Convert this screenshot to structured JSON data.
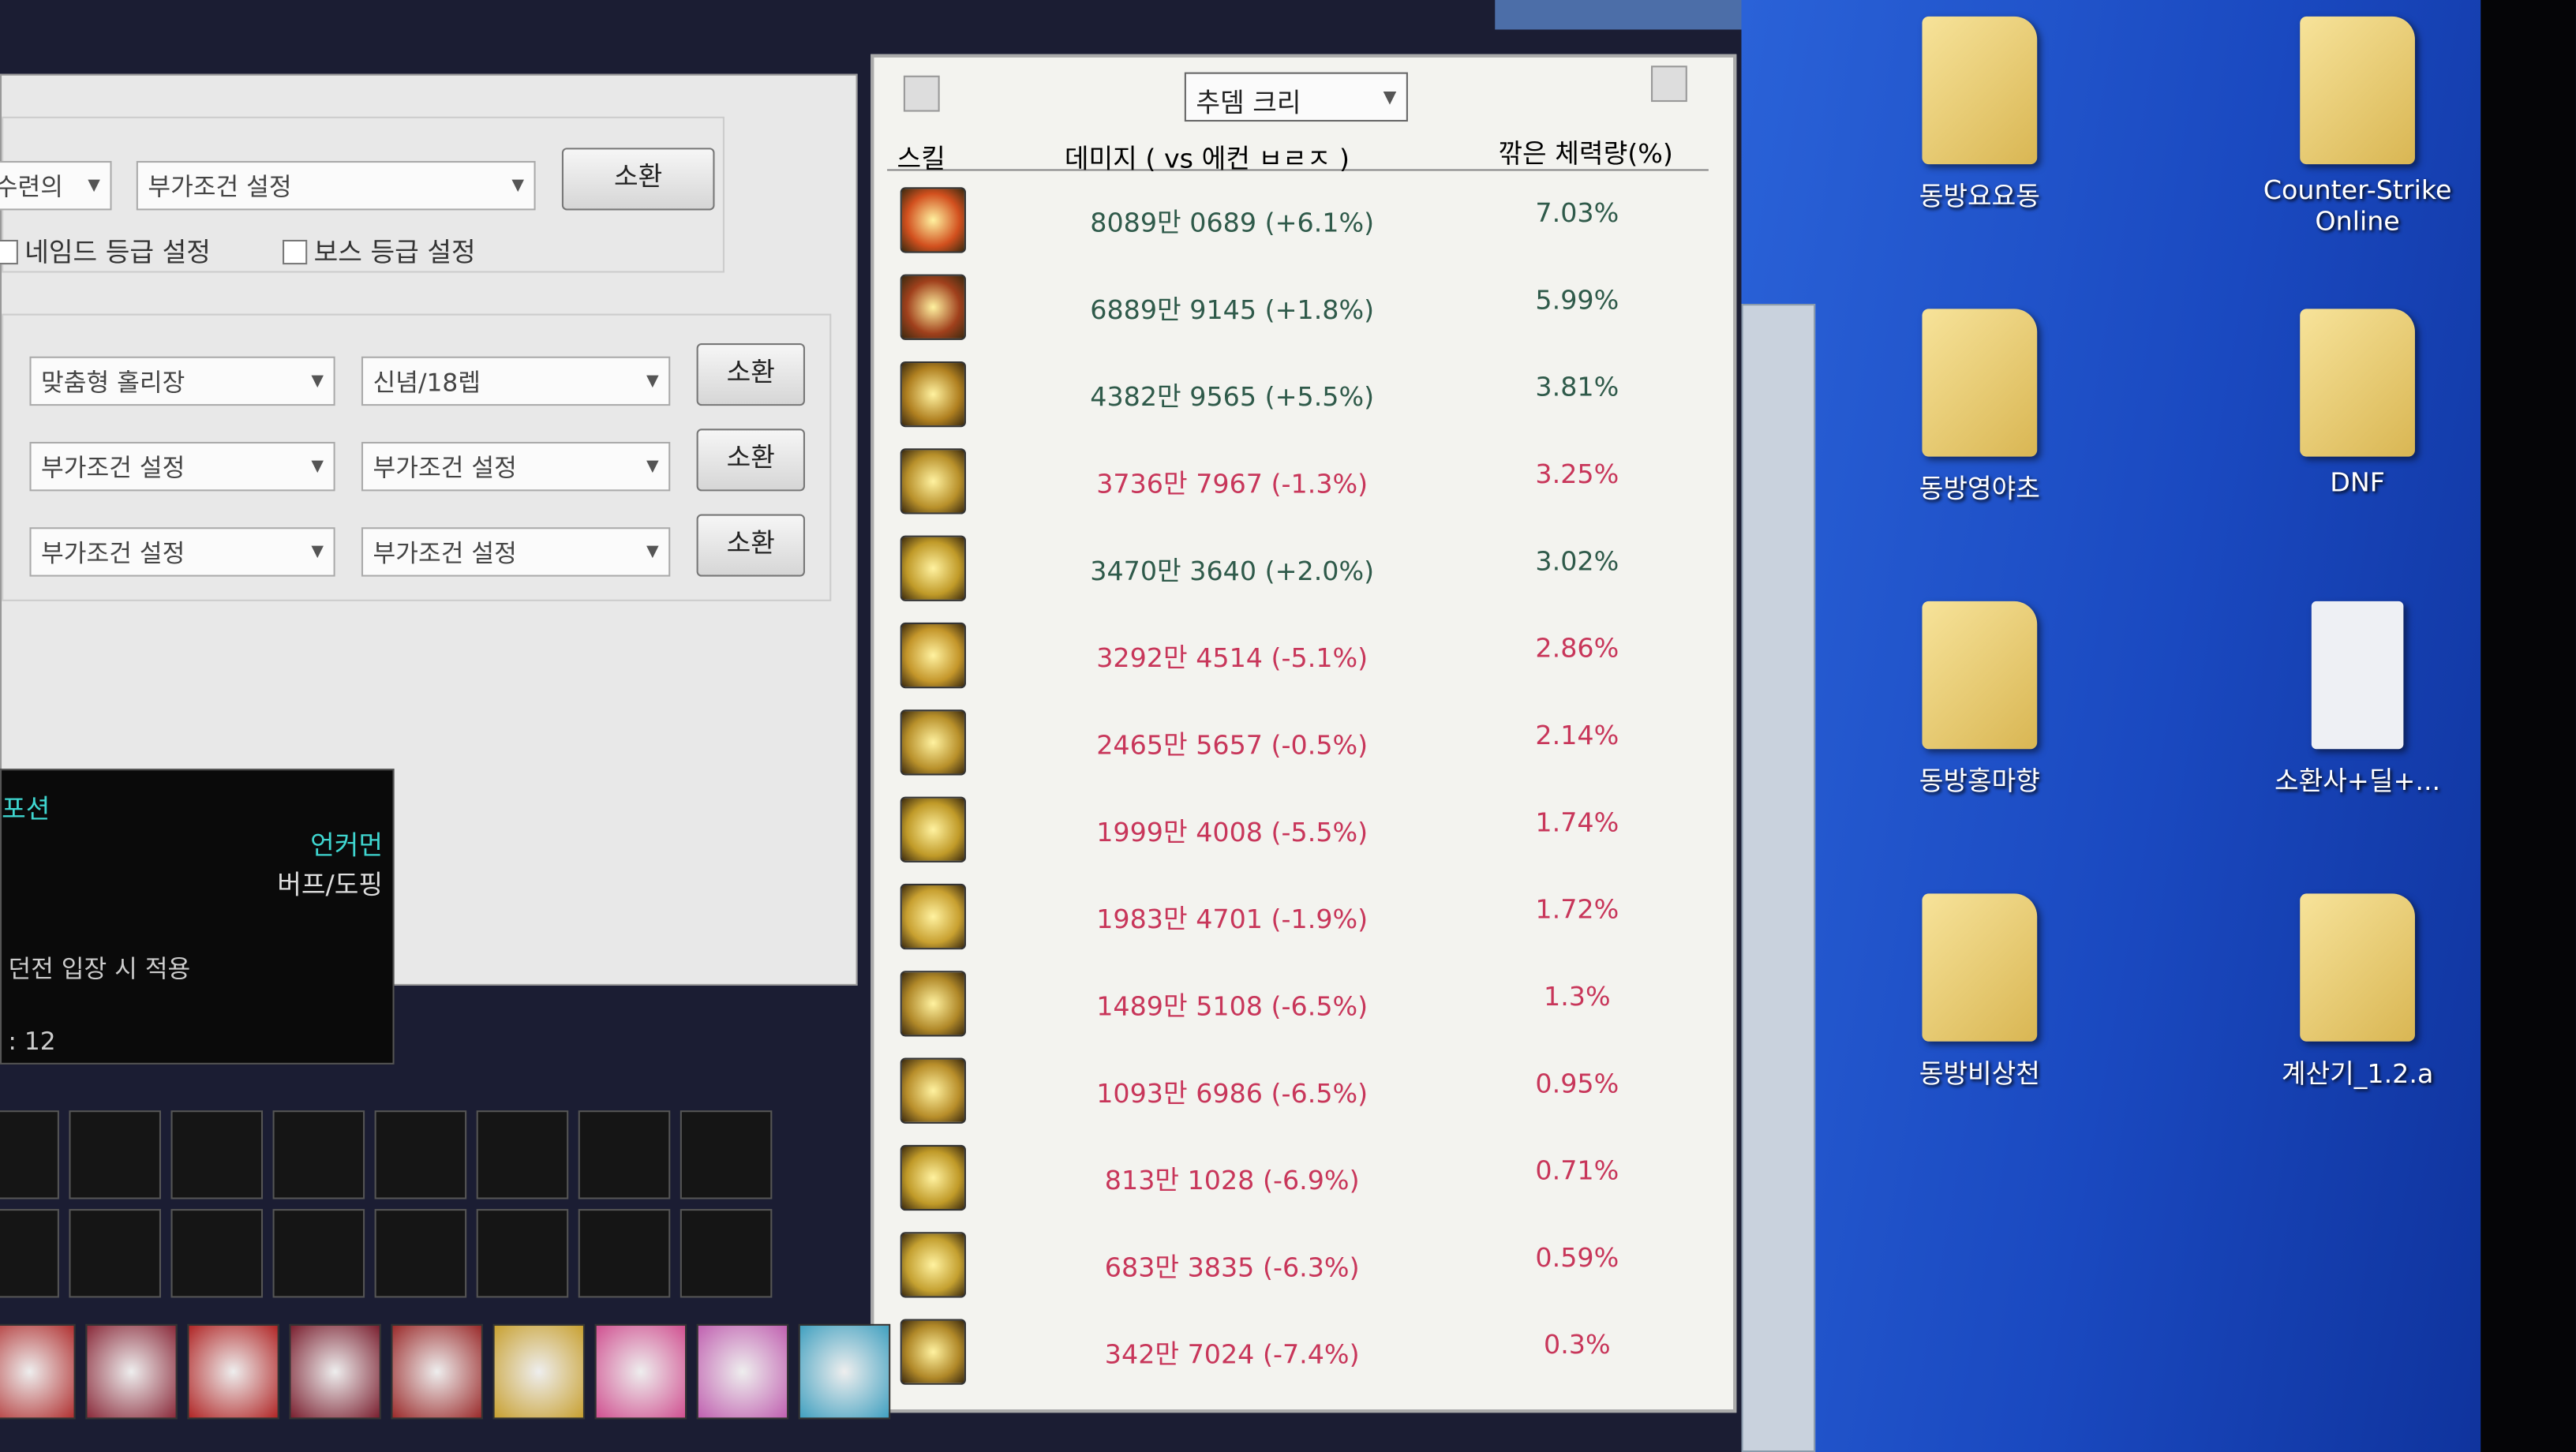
{
  "left_panel": {
    "row1": {
      "dropdown1": "수련의",
      "dropdown2": "부가조건 설정",
      "button": "소환"
    },
    "checkboxes": [
      "네임드 등급 설정",
      "보스 등급 설정"
    ],
    "rows": [
      {
        "dropdown1": "맞춤형 홀리장",
        "dropdown2": "신념/18렙",
        "button": "소환"
      },
      {
        "dropdown1": "부가조건 설정",
        "dropdown2": "부가조건 설정",
        "button": "소환"
      },
      {
        "dropdown1": "부가조건 설정",
        "dropdown2": "부가조건 설정",
        "button": "소환"
      }
    ]
  },
  "tooltip": {
    "title": "포션",
    "rarity": "언커먼",
    "category": "버프/도핑",
    "condition": "던전 입장 시 적용",
    "count": ": 12"
  },
  "table": {
    "selector": "추뎀 크리",
    "headers": [
      "스킬",
      "데미지 ( vs 에컨 ㅂㄹㅈ )",
      "깎은 체력량(%)"
    ],
    "rows": [
      [
        "8089만 0689 (+6.1%)",
        "7.03%"
      ],
      [
        "6889만 9145 (+1.8%)",
        "5.99%"
      ],
      [
        "4382만 9565 (+5.5%)",
        "3.81%"
      ],
      [
        "3736만 7967 (-1.3%)",
        "3.25%"
      ],
      [
        "3470만 3640 (+2.0%)",
        "3.02%"
      ],
      [
        "3292만 4514 (-5.1%)",
        "2.86%"
      ],
      [
        "2465만 5657 (-0.5%)",
        "2.14%"
      ],
      [
        "1999만 4008 (-5.5%)",
        "1.74%"
      ],
      [
        "1983만 4701 (-1.9%)",
        "1.72%"
      ],
      [
        "1489만 5108 (-6.5%)",
        "1.3%"
      ],
      [
        "1093만 6986 (-6.5%)",
        "0.95%"
      ],
      [
        "813만 1028 (-6.9%)",
        "0.71%"
      ],
      [
        "683만 3835 (-6.3%)",
        "0.59%"
      ],
      [
        "342만 7024 (-7.4%)",
        "0.3%"
      ]
    ]
  },
  "desktop": {
    "icons": [
      "동방요요동",
      "Counter-Strike Online",
      "동방영야초",
      "DNF",
      "동방홍마향",
      "소환사+딜+...",
      "동방비상천",
      "계산기_1.2.a"
    ]
  }
}
